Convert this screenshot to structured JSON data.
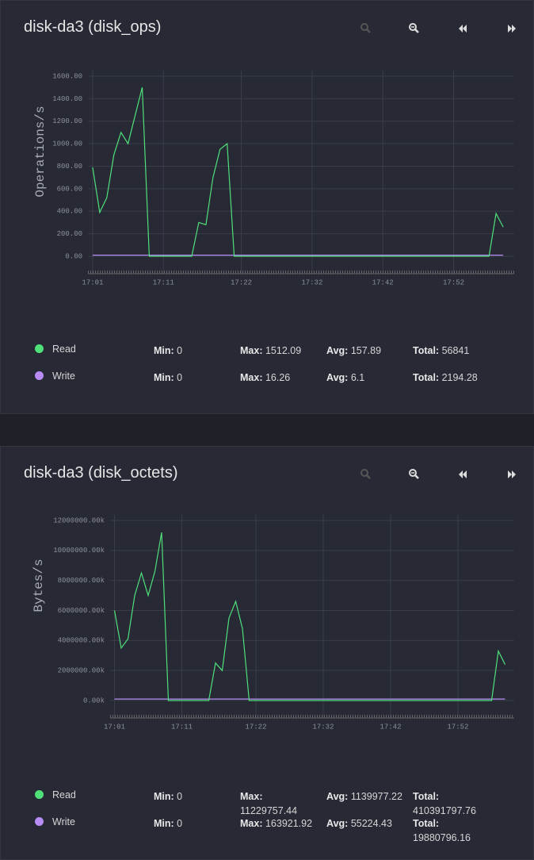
{
  "chart_data": [
    {
      "type": "line",
      "title": "disk-da3 (disk_ops)",
      "ylabel": "Operations/s",
      "x": [
        "17:01",
        "17:02",
        "17:03",
        "17:04",
        "17:05",
        "17:06",
        "17:07",
        "17:08",
        "17:09",
        "17:10",
        "17:11",
        "17:12",
        "17:13",
        "17:14",
        "17:15",
        "17:16",
        "17:17",
        "17:18",
        "17:19",
        "17:20",
        "17:21",
        "17:22",
        "17:23",
        "17:24",
        "17:25",
        "17:26",
        "17:27",
        "17:28",
        "17:29",
        "17:30",
        "17:31",
        "17:32",
        "17:33",
        "17:34",
        "17:35",
        "17:36",
        "17:37",
        "17:38",
        "17:39",
        "17:40",
        "17:41",
        "17:42",
        "17:43",
        "17:44",
        "17:45",
        "17:46",
        "17:47",
        "17:48",
        "17:49",
        "17:50",
        "17:51",
        "17:52",
        "17:53",
        "17:54",
        "17:55",
        "17:56",
        "17:57",
        "17:58",
        "17:59"
      ],
      "xlim": [
        "17:00",
        "18:00"
      ],
      "xticks": [
        "17:01",
        "17:11",
        "17:22",
        "17:32",
        "17:42",
        "17:52"
      ],
      "ylim": [
        0,
        1600
      ],
      "yticks": [
        {
          "value": 0,
          "label": "0.00"
        },
        {
          "value": 200,
          "label": "200.00"
        },
        {
          "value": 400,
          "label": "400.00"
        },
        {
          "value": 600,
          "label": "600.00"
        },
        {
          "value": 800,
          "label": "800.00"
        },
        {
          "value": 1000,
          "label": "1000.00"
        },
        {
          "value": 1200,
          "label": "1200.00"
        },
        {
          "value": 1400,
          "label": "1400.00"
        },
        {
          "value": 1600,
          "label": "1600.00"
        }
      ],
      "grid": true,
      "stat_labels": [
        "Min:",
        "Max:",
        "Avg:",
        "Total:"
      ],
      "series": [
        {
          "name": "Read",
          "color": "#4fe07a",
          "values": [
            790,
            390,
            520,
            900,
            1100,
            1000,
            1250,
            1500,
            0,
            0,
            0,
            0,
            0,
            0,
            0,
            300,
            280,
            700,
            950,
            1000,
            0,
            0,
            0,
            0,
            0,
            0,
            0,
            0,
            0,
            0,
            0,
            0,
            0,
            0,
            0,
            0,
            0,
            0,
            0,
            0,
            0,
            0,
            0,
            0,
            0,
            0,
            0,
            0,
            0,
            0,
            0,
            0,
            0,
            0,
            0,
            0,
            0,
            380,
            260
          ],
          "stats": [
            0,
            1512.09,
            157.89,
            56841
          ]
        },
        {
          "name": "Write",
          "color": "#b88cf5",
          "values": [
            10,
            10,
            10,
            10,
            10,
            10,
            10,
            10,
            10,
            10,
            10,
            10,
            10,
            10,
            10,
            10,
            10,
            10,
            10,
            10,
            10,
            10,
            10,
            10,
            10,
            10,
            10,
            10,
            10,
            10,
            10,
            10,
            10,
            10,
            10,
            10,
            10,
            10,
            10,
            10,
            10,
            10,
            10,
            10,
            10,
            10,
            10,
            10,
            10,
            10,
            10,
            10,
            10,
            10,
            10,
            10,
            10,
            10,
            10
          ],
          "stats": [
            0,
            16.26,
            6.1,
            2194.28
          ]
        }
      ]
    },
    {
      "type": "line",
      "title": "disk-da3 (disk_octets)",
      "ylabel": "Bytes/s",
      "x": [
        "17:01",
        "17:02",
        "17:03",
        "17:04",
        "17:05",
        "17:06",
        "17:07",
        "17:08",
        "17:09",
        "17:10",
        "17:11",
        "17:12",
        "17:13",
        "17:14",
        "17:15",
        "17:16",
        "17:17",
        "17:18",
        "17:19",
        "17:20",
        "17:21",
        "17:22",
        "17:23",
        "17:24",
        "17:25",
        "17:26",
        "17:27",
        "17:28",
        "17:29",
        "17:30",
        "17:31",
        "17:32",
        "17:33",
        "17:34",
        "17:35",
        "17:36",
        "17:37",
        "17:38",
        "17:39",
        "17:40",
        "17:41",
        "17:42",
        "17:43",
        "17:44",
        "17:45",
        "17:46",
        "17:47",
        "17:48",
        "17:49",
        "17:50",
        "17:51",
        "17:52",
        "17:53",
        "17:54",
        "17:55",
        "17:56",
        "17:57",
        "17:58",
        "17:59"
      ],
      "xlim": [
        "17:00",
        "18:00"
      ],
      "xticks": [
        "17:01",
        "17:11",
        "17:22",
        "17:32",
        "17:42",
        "17:52"
      ],
      "ylim": [
        0,
        12000000
      ],
      "yticks": [
        {
          "value": 0,
          "label": "0.00k"
        },
        {
          "value": 2000000,
          "label": "2000000.00k"
        },
        {
          "value": 4000000,
          "label": "4000000.00k"
        },
        {
          "value": 6000000,
          "label": "6000000.00k"
        },
        {
          "value": 8000000,
          "label": "8000000.00k"
        },
        {
          "value": 10000000,
          "label": "10000000.00k"
        },
        {
          "value": 12000000,
          "label": "12000000.00k"
        }
      ],
      "grid": true,
      "stat_labels": [
        "Min:",
        "Max:",
        "Avg:",
        "Total:"
      ],
      "series": [
        {
          "name": "Read",
          "color": "#4fe07a",
          "values": [
            6000000,
            3500000,
            4100000,
            7000000,
            8500000,
            7000000,
            8600000,
            11200000,
            0,
            0,
            0,
            0,
            0,
            0,
            0,
            2500000,
            2000000,
            5500000,
            6600000,
            4800000,
            0,
            0,
            0,
            0,
            0,
            0,
            0,
            0,
            0,
            0,
            0,
            0,
            0,
            0,
            0,
            0,
            0,
            0,
            0,
            0,
            0,
            0,
            0,
            0,
            0,
            0,
            0,
            0,
            0,
            0,
            0,
            0,
            0,
            0,
            0,
            0,
            0,
            3300000,
            2400000
          ],
          "stats": [
            0,
            11229757.44,
            1139977.22,
            410391797.76
          ]
        },
        {
          "name": "Write",
          "color": "#b88cf5",
          "values": [
            100000,
            100000,
            100000,
            100000,
            100000,
            100000,
            100000,
            100000,
            100000,
            100000,
            100000,
            100000,
            100000,
            100000,
            100000,
            100000,
            100000,
            100000,
            100000,
            100000,
            100000,
            100000,
            100000,
            100000,
            100000,
            100000,
            100000,
            100000,
            100000,
            100000,
            100000,
            100000,
            100000,
            100000,
            100000,
            100000,
            100000,
            100000,
            100000,
            100000,
            100000,
            100000,
            100000,
            100000,
            100000,
            100000,
            100000,
            100000,
            100000,
            100000,
            100000,
            100000,
            100000,
            100000,
            100000,
            100000,
            100000,
            100000,
            100000
          ],
          "stats": [
            0,
            163921.92,
            55224.43,
            19880796.16
          ]
        }
      ]
    }
  ]
}
